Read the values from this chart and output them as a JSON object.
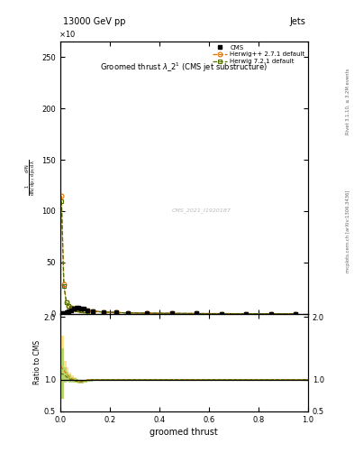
{
  "title_top_left": "13000 GeV pp",
  "title_top_right": "Jets",
  "plot_title": "Groomed thrust $\\lambda\\_2^1$ (CMS jet substructure)",
  "xlabel": "groomed thrust",
  "ylabel_main": "$\\frac{1}{\\mathrm{d}N\\,/\\,\\mathrm{d}p_T}\\,\\frac{\\mathrm{d}^2 N}{\\mathrm{d}p_T\\,\\mathrm{d}\\lambda}$",
  "ylabel_ratio": "Ratio to CMS",
  "watermark": "CMS_2021_I1920187",
  "right_label": "mcplots.cern.ch [arXiv:1306.3436]",
  "right_label2": "Rivet 3.1.10, ≥ 3.2M events",
  "ylim_main": [
    0,
    265
  ],
  "ylim_ratio": [
    0.5,
    2.05
  ],
  "xlim": [
    0,
    1
  ],
  "scale_factor": 10,
  "cms_x": [
    0.005,
    0.015,
    0.025,
    0.035,
    0.045,
    0.055,
    0.065,
    0.075,
    0.085,
    0.095,
    0.11,
    0.13,
    0.175,
    0.225,
    0.275,
    0.35,
    0.45,
    0.55,
    0.65,
    0.75,
    0.85,
    0.95
  ],
  "cms_y": [
    1.0,
    1.2,
    1.5,
    2.5,
    3.8,
    5.0,
    5.8,
    6.0,
    5.5,
    4.8,
    3.8,
    2.8,
    2.0,
    1.4,
    1.0,
    0.7,
    0.55,
    0.4,
    0.3,
    0.25,
    0.2,
    0.15
  ],
  "herwig_pp_x": [
    0.005,
    0.015,
    0.025,
    0.035,
    0.045,
    0.055,
    0.065,
    0.075,
    0.085,
    0.095,
    0.11,
    0.13,
    0.175,
    0.225,
    0.275,
    0.35,
    0.45,
    0.55,
    0.65,
    0.75,
    0.85,
    0.95
  ],
  "herwig_pp_y": [
    115.0,
    29.0,
    11.5,
    8.0,
    6.2,
    5.2,
    4.8,
    4.5,
    4.0,
    3.5,
    3.0,
    2.5,
    1.9,
    1.4,
    1.0,
    0.75,
    0.55,
    0.4,
    0.3,
    0.25,
    0.2,
    0.15
  ],
  "herwig7_x": [
    0.005,
    0.015,
    0.025,
    0.035,
    0.045,
    0.055,
    0.065,
    0.075,
    0.085,
    0.095,
    0.11,
    0.13,
    0.175,
    0.225,
    0.275,
    0.35,
    0.45,
    0.55,
    0.65,
    0.75,
    0.85,
    0.95
  ],
  "herwig7_y": [
    110.0,
    27.0,
    11.0,
    7.5,
    6.0,
    5.0,
    4.6,
    4.3,
    3.8,
    3.3,
    2.9,
    2.4,
    1.8,
    1.3,
    0.95,
    0.72,
    0.52,
    0.38,
    0.28,
    0.23,
    0.18,
    0.13
  ],
  "ratio_herwig_pp_x": [
    0.0,
    0.005,
    0.015,
    0.025,
    0.035,
    0.045,
    0.055,
    0.065,
    0.075,
    0.085,
    0.095,
    0.11,
    0.13,
    0.175,
    0.225,
    0.275,
    0.35,
    0.45,
    0.55,
    0.65,
    0.75,
    0.85,
    0.95,
    1.0
  ],
  "ratio_herwig_pp_y": [
    1.2,
    1.2,
    1.15,
    1.1,
    1.05,
    1.02,
    1.0,
    0.98,
    0.97,
    0.97,
    0.98,
    1.0,
    1.0,
    1.0,
    1.0,
    1.0,
    1.0,
    1.0,
    1.0,
    1.0,
    1.0,
    1.0,
    1.0,
    1.0
  ],
  "ratio_herwig_pp_err": [
    0.5,
    0.5,
    0.15,
    0.1,
    0.07,
    0.05,
    0.04,
    0.035,
    0.03,
    0.025,
    0.022,
    0.02,
    0.02,
    0.02,
    0.02,
    0.018,
    0.015,
    0.012,
    0.01,
    0.01,
    0.01,
    0.01,
    0.01,
    0.01
  ],
  "ratio_herwig7_x": [
    0.0,
    0.005,
    0.015,
    0.025,
    0.035,
    0.045,
    0.055,
    0.065,
    0.075,
    0.085,
    0.095,
    0.11,
    0.13,
    0.175,
    0.225,
    0.275,
    0.35,
    0.45,
    0.55,
    0.65,
    0.75,
    0.85,
    0.95,
    1.0
  ],
  "ratio_herwig7_y": [
    1.1,
    1.1,
    1.08,
    1.05,
    1.02,
    1.0,
    0.99,
    0.98,
    0.97,
    0.97,
    0.98,
    0.99,
    1.0,
    1.0,
    1.0,
    1.0,
    1.0,
    1.0,
    1.0,
    1.0,
    1.0,
    1.0,
    1.0,
    1.0
  ],
  "ratio_herwig7_err": [
    0.4,
    0.4,
    0.12,
    0.08,
    0.06,
    0.04,
    0.035,
    0.03,
    0.025,
    0.022,
    0.02,
    0.018,
    0.018,
    0.018,
    0.018,
    0.015,
    0.013,
    0.01,
    0.009,
    0.009,
    0.009,
    0.009,
    0.009,
    0.009
  ],
  "color_cms": "#000000",
  "color_herwig_pp": "#e07000",
  "color_herwig7": "#507000",
  "color_herwig_pp_band": "#ffe080",
  "color_herwig7_band": "#a0d060",
  "bg_color": "#ffffff"
}
